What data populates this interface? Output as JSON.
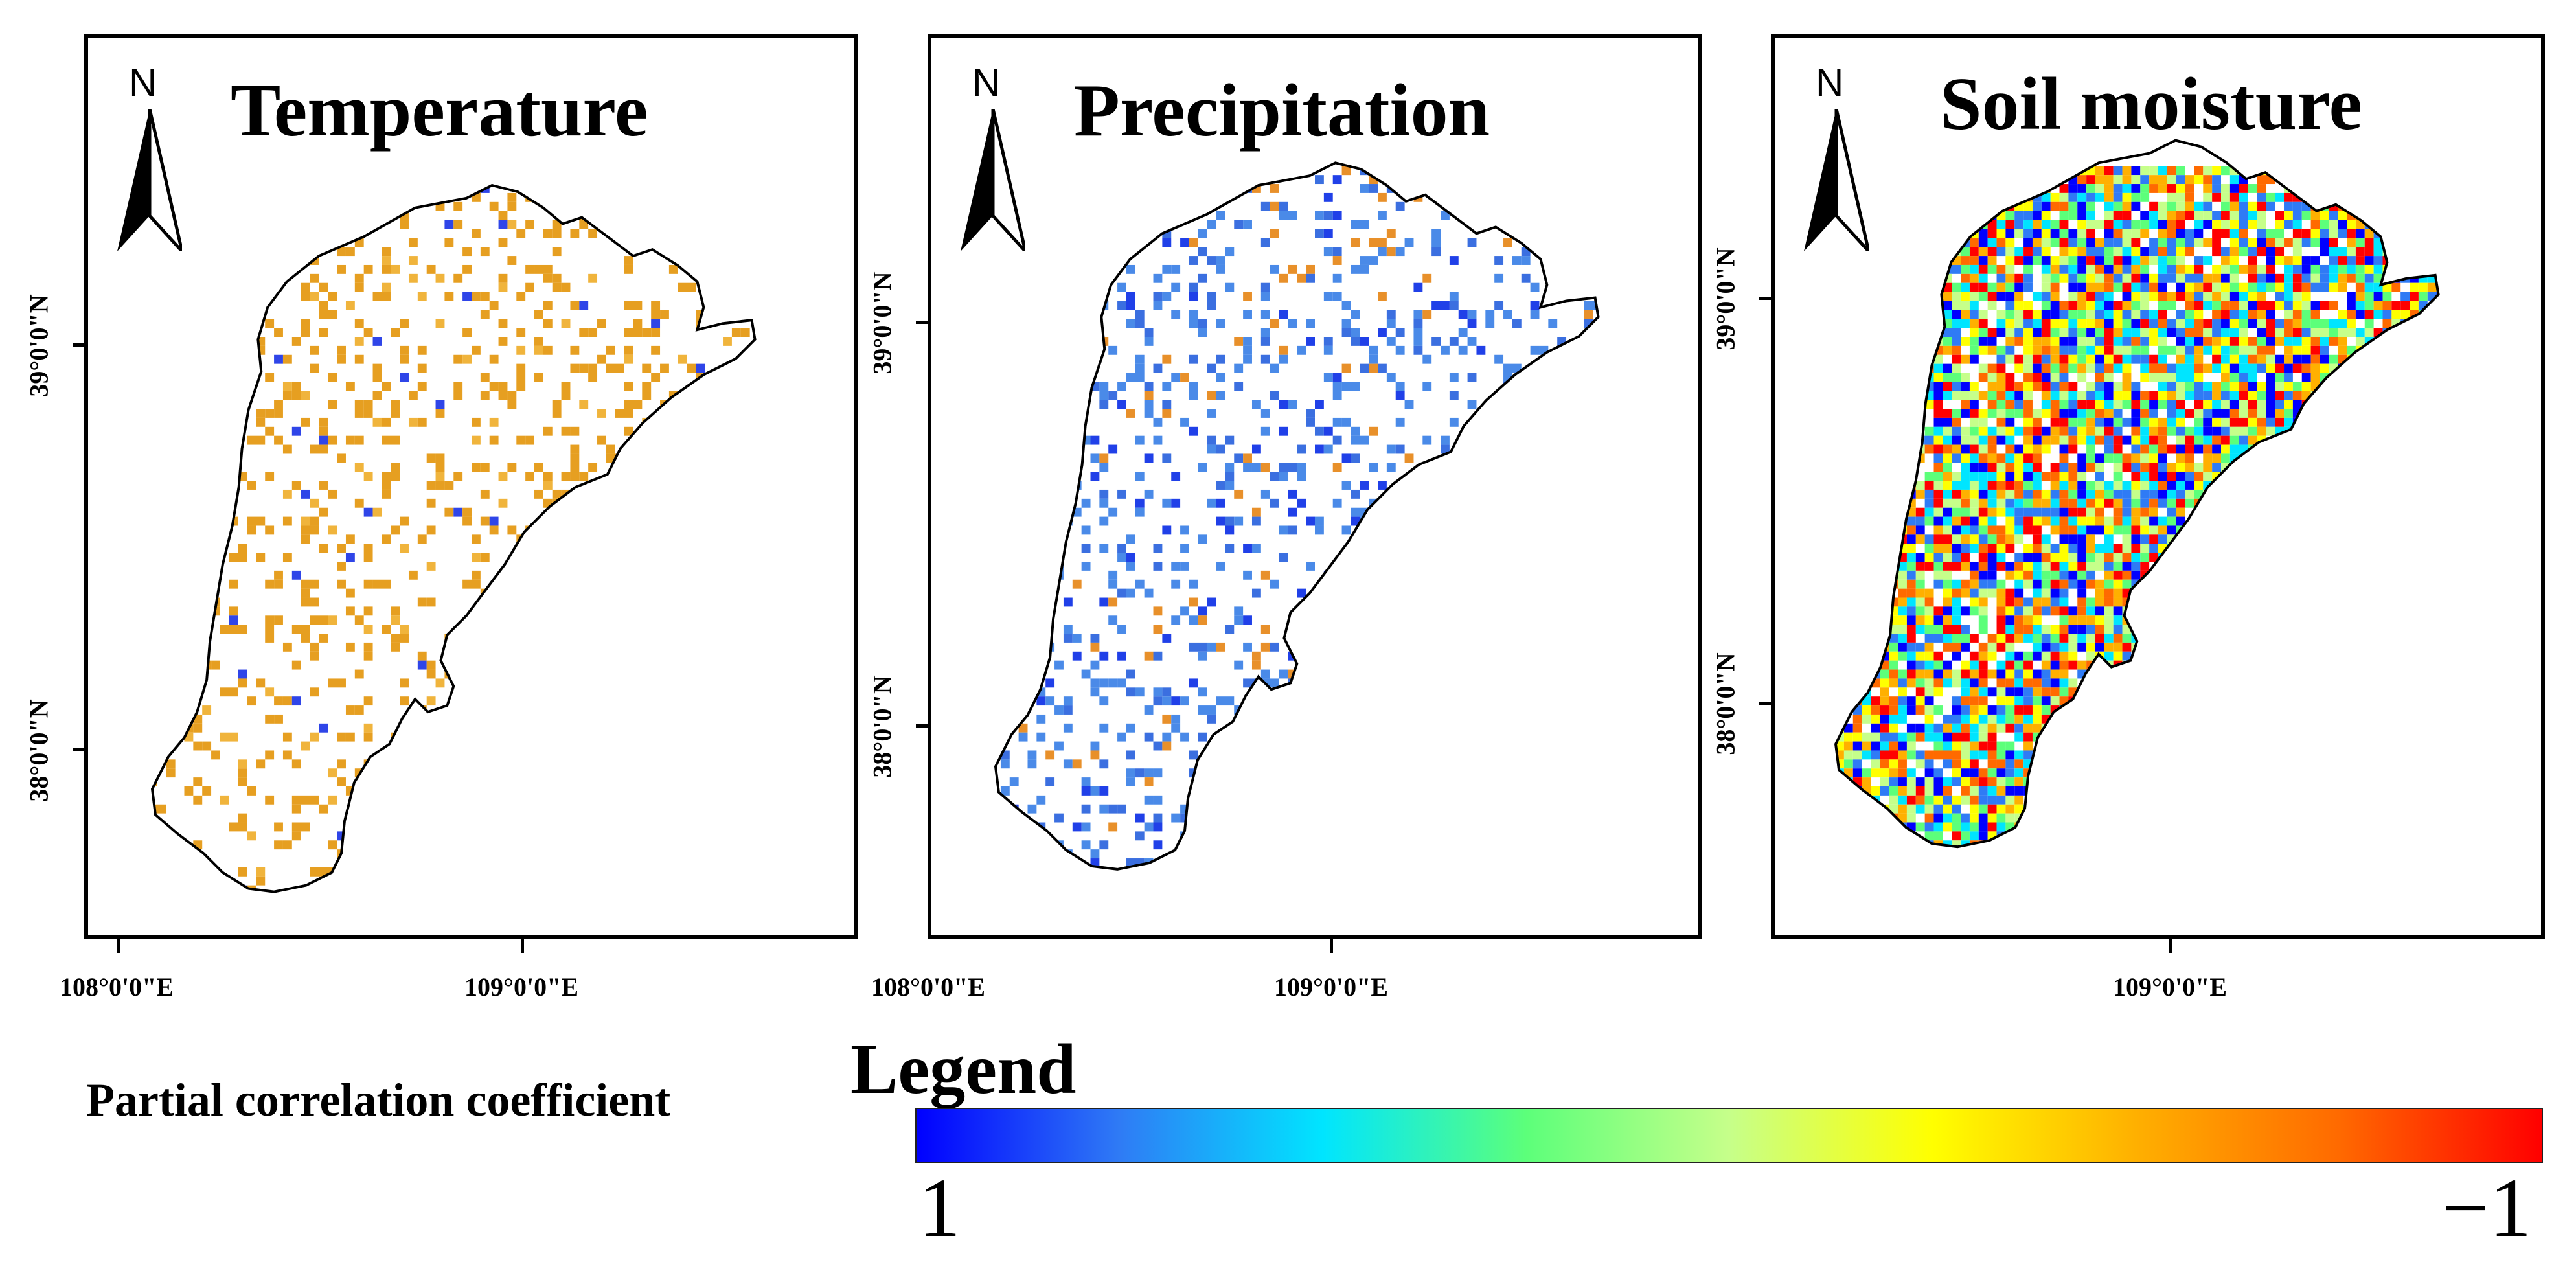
{
  "panels": [
    {
      "title": "Temperature",
      "scheme": "temperature"
    },
    {
      "title": "Precipitation",
      "scheme": "precipitation"
    },
    {
      "title": "Soil moisture",
      "scheme": "soil"
    }
  ],
  "north_label": "N",
  "lat_labels": [
    "39°0'0\"N",
    "38°0'0\"N"
  ],
  "lon_labels": {
    "p1": [
      "108°0'0\"E",
      "109°0'0\"E"
    ],
    "p2": [
      "108°0'0\"E",
      "109°0'0\"E"
    ],
    "p3": [
      "109°0'0\"E"
    ]
  },
  "axis_label": "Partial correlation coefficient",
  "legend": {
    "title": "Legend",
    "min_label": "1",
    "max_label": "−1",
    "colors": [
      "#0000ff",
      "#2f7bf5",
      "#00e5ff",
      "#5cff7a",
      "#c6ff8a",
      "#ffff00",
      "#ffb000",
      "#ff6a00",
      "#ff0000"
    ]
  }
}
